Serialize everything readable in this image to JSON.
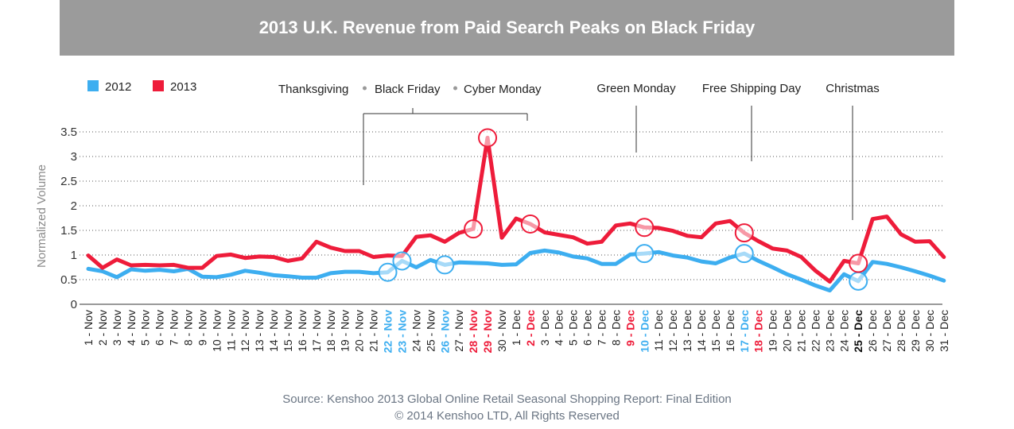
{
  "title": "2013 U.K. Revenue from Paid Search Peaks on Black Friday",
  "source": {
    "line1": "Source: Kenshoo 2013 Global Online Retail Seasonal Shopping Report: Final Edition",
    "line2": "© 2014 Kenshoo LTD, All Rights Reserved"
  },
  "colors": {
    "2012": "#3daef0",
    "2013": "#ee1c3a",
    "title_bg": "#9b9b9b"
  },
  "chart_data": {
    "type": "line",
    "ylabel": "Normalized Volume",
    "xlabel": "",
    "ylim": [
      0,
      3.5
    ],
    "yticks": [
      "0",
      "0.5",
      "1",
      "1.5",
      "2",
      "2.5",
      "3",
      "3.5"
    ],
    "grid": "horizontal dotted",
    "legend": "top-left",
    "categories": [
      "1 - Nov",
      "2 - Nov",
      "3 - Nov",
      "4 - Nov",
      "5 - Nov",
      "6 - Nov",
      "7 - Nov",
      "8 - Nov",
      "9 - Nov",
      "10 - Nov",
      "11 - Nov",
      "12 - Nov",
      "13 - Nov",
      "14 - Nov",
      "15 - Nov",
      "16 - Nov",
      "17 - Nov",
      "18 - Nov",
      "19 - Nov",
      "20 - Nov",
      "21 - Nov",
      "22 - Nov",
      "23 - Nov",
      "24 - Nov",
      "25 - Nov",
      "26 - Nov",
      "27 - Nov",
      "28 - Nov",
      "29 - Nov",
      "30 - Nov",
      "1 - Dec",
      "2 - Dec",
      "3 - Dec",
      "4 - Dec",
      "5 - Dec",
      "6 - Dec",
      "7 - Dec",
      "8 - Dec",
      "9 - Dec",
      "10 - Dec",
      "11 - Dec",
      "12 - Dec",
      "13 - Dec",
      "14 - Dec",
      "15 - Dec",
      "16 - Dec",
      "17 - Dec",
      "18 - Dec",
      "19 - Dec",
      "20 - Dec",
      "21 - Dec",
      "22 - Dec",
      "23 - Dec",
      "24 - Dec",
      "25 - Dec",
      "26 - Dec",
      "27 - Dec",
      "28 - Dec",
      "29 - Dec",
      "30 - Dec",
      "31 - Dec"
    ],
    "category_styles": {
      "21": "blue",
      "22": "blue",
      "25": "blue",
      "27": "red",
      "28": "red",
      "31": "red",
      "38": "red",
      "39": "blue",
      "46": "blue",
      "47": "red",
      "54": "dark"
    },
    "series": [
      {
        "name": "2012",
        "color": "#3daef0",
        "values": [
          0.72,
          0.67,
          0.55,
          0.71,
          0.68,
          0.7,
          0.67,
          0.72,
          0.56,
          0.55,
          0.6,
          0.68,
          0.64,
          0.59,
          0.57,
          0.54,
          0.54,
          0.63,
          0.66,
          0.66,
          0.63,
          0.65,
          0.88,
          0.75,
          0.9,
          0.8,
          0.85,
          0.84,
          0.83,
          0.8,
          0.81,
          1.04,
          1.09,
          1.05,
          0.97,
          0.93,
          0.82,
          0.82,
          1.01,
          1.03,
          1.06,
          0.99,
          0.95,
          0.87,
          0.83,
          0.95,
          1.03,
          0.88,
          0.75,
          0.61,
          0.5,
          0.38,
          0.28,
          0.61,
          0.47,
          0.86,
          0.82,
          0.75,
          0.67,
          0.58,
          0.48
        ],
        "highlights": [
          21,
          22,
          25,
          39,
          46,
          54
        ]
      },
      {
        "name": "2013",
        "color": "#ee1c3a",
        "values": [
          0.99,
          0.74,
          0.91,
          0.79,
          0.8,
          0.79,
          0.8,
          0.74,
          0.74,
          0.98,
          1.01,
          0.94,
          0.97,
          0.96,
          0.88,
          0.93,
          1.27,
          1.15,
          1.08,
          1.08,
          0.96,
          0.99,
          0.98,
          1.37,
          1.4,
          1.27,
          1.45,
          1.53,
          3.38,
          1.35,
          1.74,
          1.63,
          1.46,
          1.41,
          1.36,
          1.23,
          1.27,
          1.6,
          1.64,
          1.56,
          1.55,
          1.49,
          1.39,
          1.36,
          1.64,
          1.69,
          1.45,
          1.28,
          1.13,
          1.09,
          0.96,
          0.68,
          0.46,
          0.88,
          0.83,
          1.73,
          1.78,
          1.42,
          1.27,
          1.28,
          0.96
        ],
        "highlights": [
          27,
          28,
          31,
          39,
          46,
          54
        ]
      }
    ],
    "events": [
      {
        "labels": [
          "Thanksgiving",
          "Black Friday",
          "Cyber Monday"
        ],
        "start_index": 21,
        "end_index": 31
      },
      {
        "labels": [
          "Green Monday"
        ],
        "index": 39
      },
      {
        "labels": [
          "Free Shipping Day"
        ],
        "index": 46
      },
      {
        "labels": [
          "Christmas"
        ],
        "index": 54
      }
    ]
  }
}
